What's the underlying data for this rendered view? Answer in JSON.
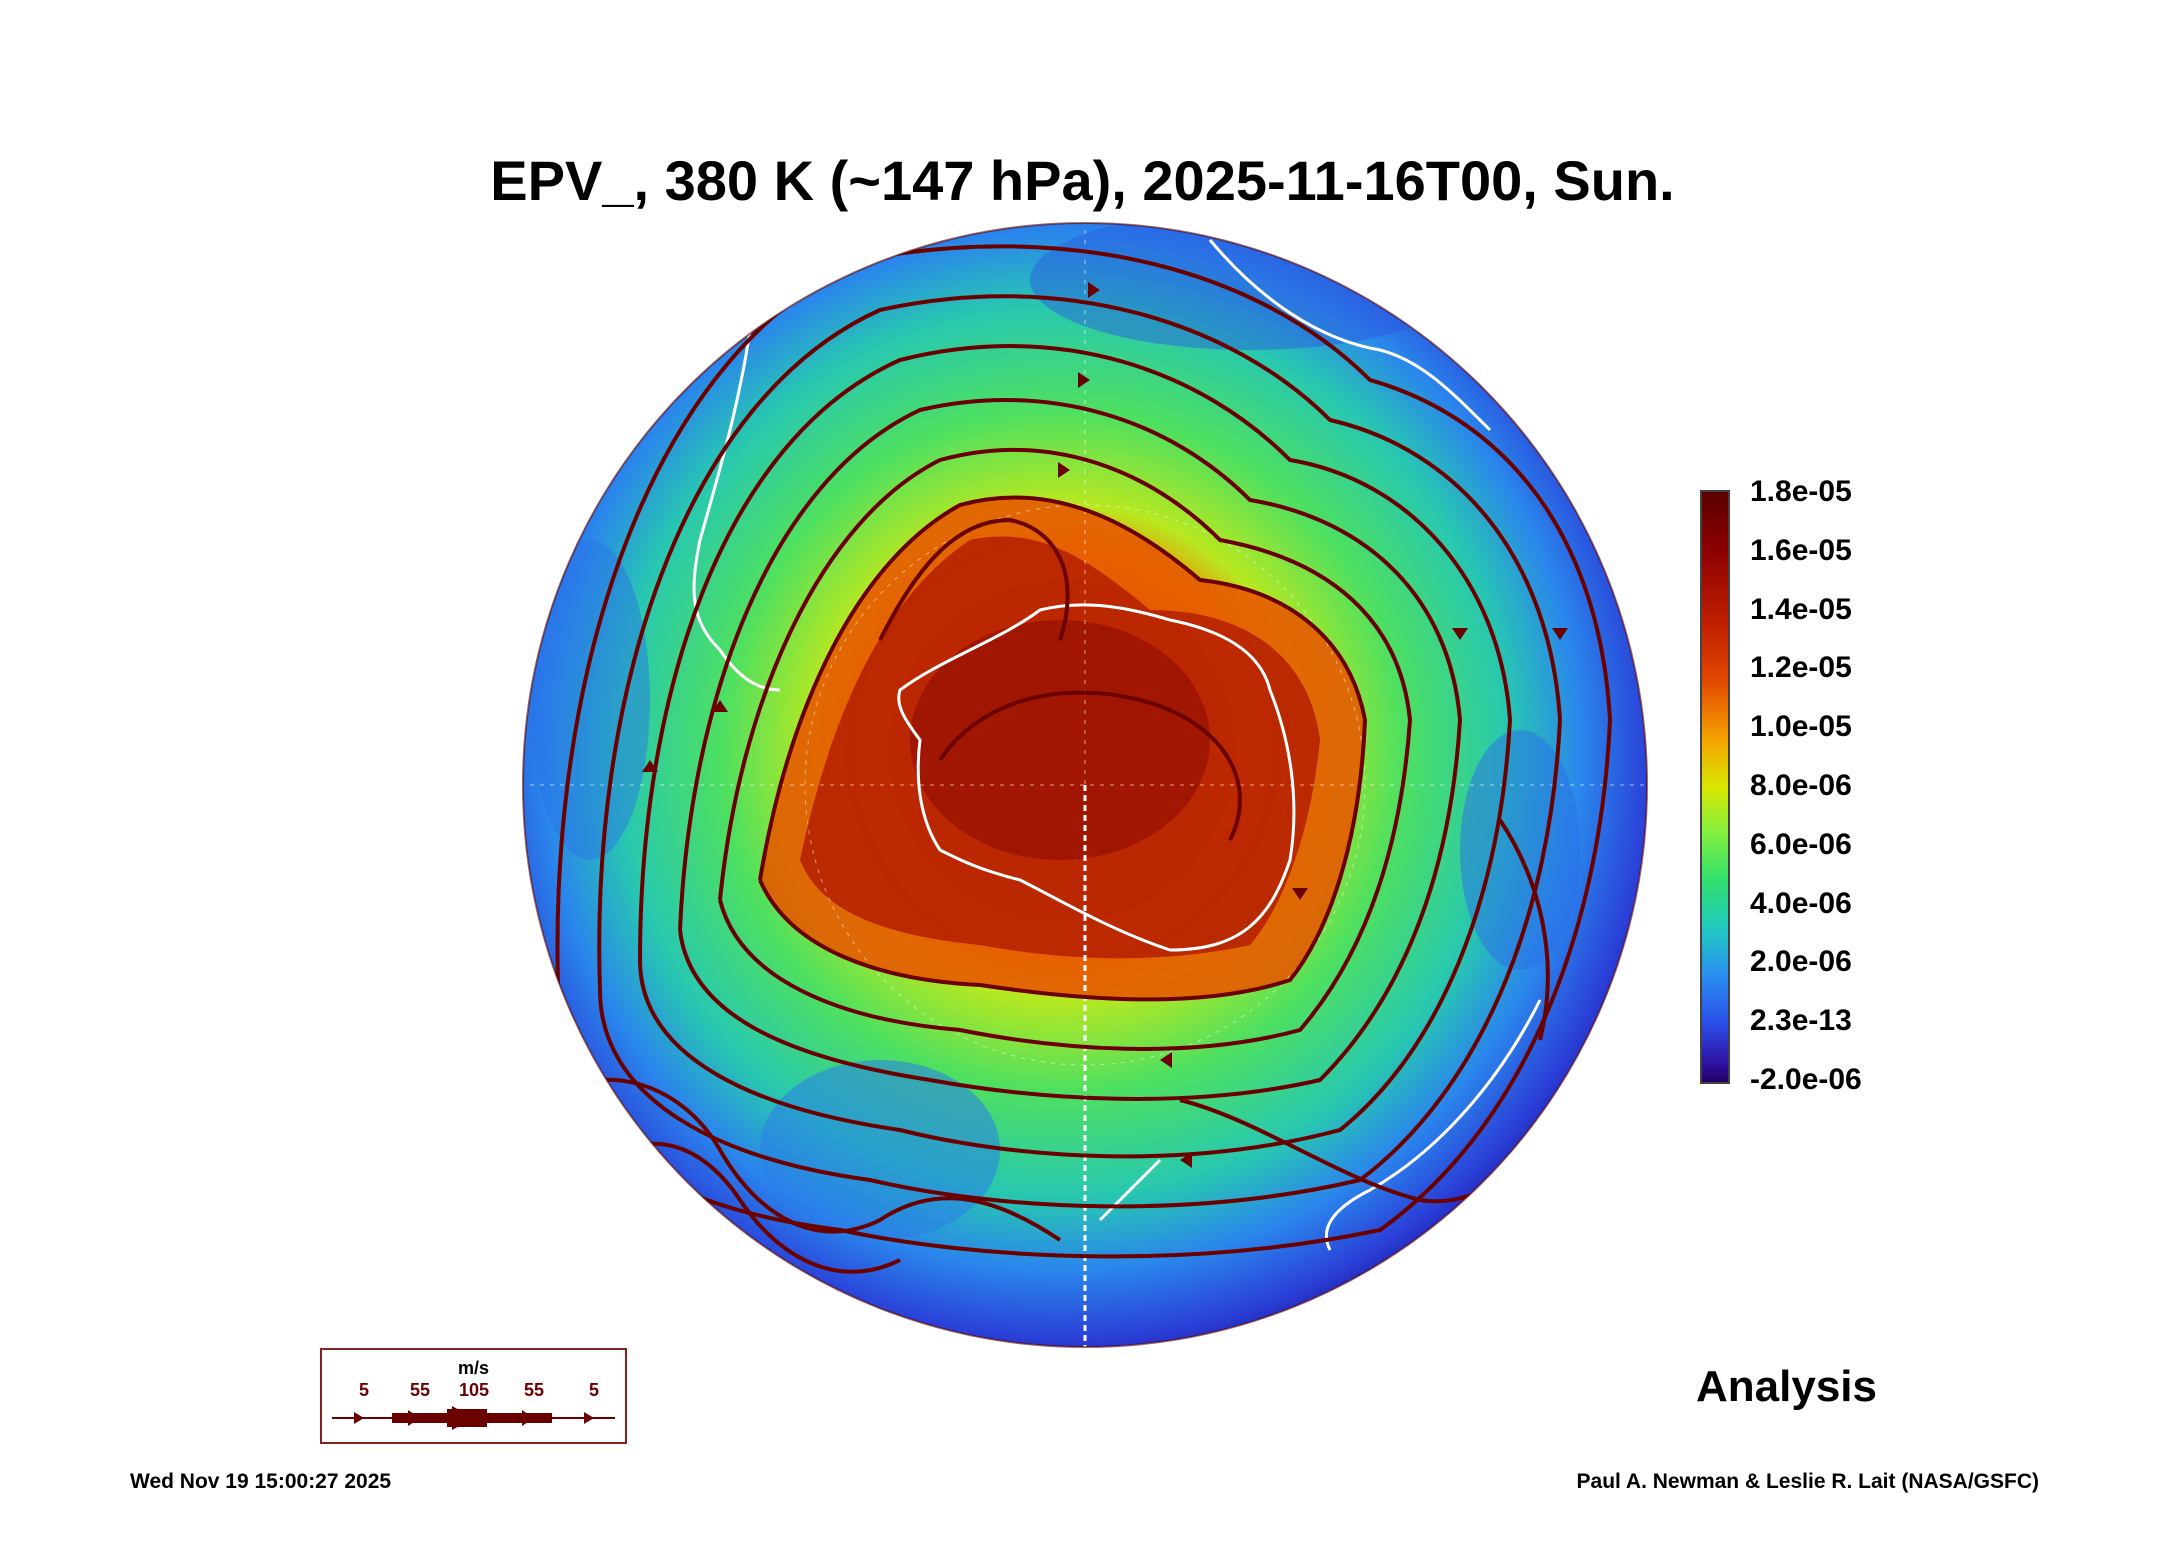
{
  "title": "EPV_, 380 K (~147 hPa), 2025-11-16T00, Sun.",
  "colorbar": {
    "labels": [
      "1.8e-05",
      "1.6e-05",
      "1.4e-05",
      "1.2e-05",
      "1.0e-05",
      "8.0e-06",
      "6.0e-06",
      "4.0e-06",
      "2.0e-06",
      "2.3e-13",
      "-2.0e-06"
    ],
    "max": 1.8e-05,
    "min": -2e-06
  },
  "analysis_label": "Analysis",
  "wind_legend": {
    "unit": "m/s",
    "speeds": [
      "5",
      "55",
      "105",
      "55",
      "5"
    ]
  },
  "footer": {
    "timestamp": "Wed Nov 19 15:00:27 2025",
    "credit": "Paul A. Newman & Leslie R. Lait (NASA/GSFC)"
  },
  "colors": {
    "streamline": "#6b0000",
    "coastline": "#ffffff",
    "vortex_core": "#8c0000",
    "outer_low": "#2a3ed0"
  }
}
